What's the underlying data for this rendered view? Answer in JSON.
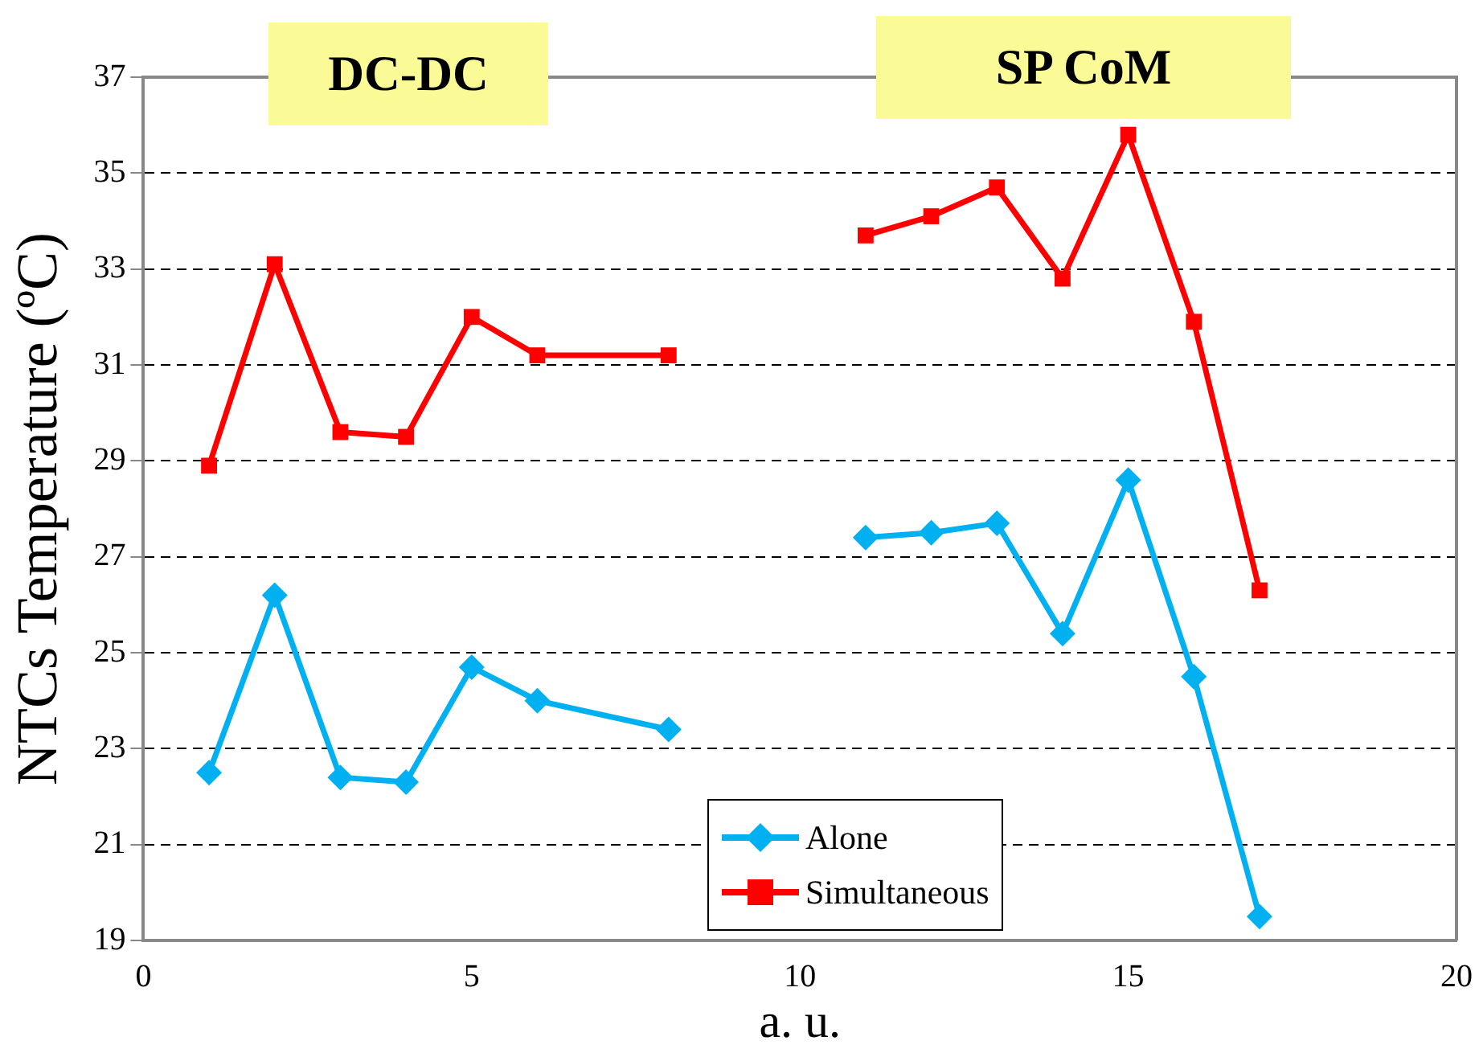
{
  "chart_data": {
    "type": "line",
    "xlabel": "a. u.",
    "ylabel": "NTCs Temperature (ºC)",
    "x": [
      1,
      2,
      3,
      4,
      5,
      6,
      8,
      10,
      11,
      12,
      13,
      14,
      15,
      16,
      17
    ],
    "series": [
      {
        "name": "Alone",
        "color": "#00b0f0",
        "marker": "diamond",
        "values": [
          22.5,
          26.2,
          22.4,
          22.3,
          24.7,
          24.0,
          23.4,
          null,
          27.4,
          27.5,
          27.7,
          25.4,
          28.6,
          24.5,
          19.5
        ]
      },
      {
        "name": "Simultaneous",
        "color": "#ff0000",
        "marker": "square",
        "values": [
          28.9,
          33.1,
          29.6,
          29.5,
          32.0,
          31.2,
          31.2,
          null,
          33.7,
          34.1,
          34.7,
          32.8,
          35.8,
          31.9,
          26.3
        ]
      }
    ],
    "xlim": [
      0,
      20
    ],
    "xticks": [
      0,
      5,
      10,
      15,
      20
    ],
    "ylim": [
      19,
      37
    ],
    "yticks": [
      19,
      21,
      23,
      25,
      27,
      29,
      31,
      33,
      35,
      37
    ],
    "grid": "y",
    "legend": "bottom",
    "annotations": [
      "DC-DC",
      "SP CoM"
    ]
  }
}
